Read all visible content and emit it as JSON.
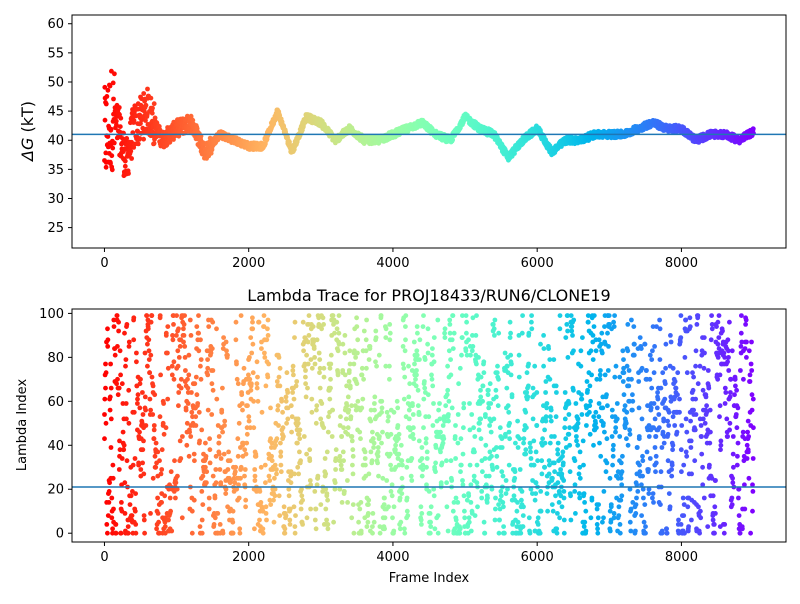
{
  "chart_data": [
    {
      "type": "scatter",
      "title": "",
      "xlabel": "",
      "ylabel": "ΔG (kT)",
      "ylabel_symbol": "ΔG",
      "ylabel_unit": "(kT)",
      "xlim": [
        -450,
        9450
      ],
      "ylim": [
        21.5,
        61.5
      ],
      "xticks": [
        0,
        2000,
        4000,
        6000,
        8000
      ],
      "yticks": [
        25,
        30,
        35,
        40,
        45,
        50,
        55,
        60
      ],
      "hline": 41.0,
      "hline_color": "#1f77b4",
      "colormap": "rainbow (red at early frames → violet at late frames)",
      "x_range": [
        0,
        9000
      ],
      "trend": "early frames scatter widely (24–58), spread narrows over time; later values wander between ~37 and ~46 around the 41 reference line",
      "series": [
        {
          "x": [
            0,
            100,
            200,
            300,
            400,
            600,
            800,
            1000,
            1200,
            1400,
            1600,
            1800,
            2000,
            2200,
            2400,
            2600,
            2800,
            3000,
            3200,
            3400,
            3600,
            3800,
            4000,
            4200,
            4400,
            4600,
            4800,
            5000,
            5200,
            5400,
            5600,
            5800,
            6000,
            6200,
            6400,
            6600,
            6800,
            7000,
            7200,
            7400,
            7600,
            7800,
            8000,
            8200,
            8400,
            8600,
            8800,
            9000
          ],
          "y": [
            40,
            44,
            42,
            36,
            42,
            45,
            40,
            42,
            43,
            38,
            41,
            40,
            39,
            39,
            45,
            38,
            44,
            43,
            40,
            42,
            40,
            40,
            41,
            42,
            43,
            41,
            40,
            44,
            42,
            41,
            37,
            40,
            42,
            38,
            40,
            40,
            41,
            41,
            41,
            42,
            43,
            42,
            42,
            40,
            41,
            41,
            40,
            41.5
          ]
        }
      ]
    },
    {
      "type": "scatter",
      "title": "Lambda Trace for PROJ18433/RUN6/CLONE19",
      "xlabel": "Frame Index",
      "ylabel": "Lambda Index",
      "xlim": [
        -450,
        9450
      ],
      "ylim": [
        -4,
        102
      ],
      "xticks": [
        0,
        2000,
        4000,
        6000,
        8000
      ],
      "yticks": [
        0,
        20,
        40,
        60,
        80,
        100
      ],
      "hline": 21,
      "hline_color": "#1f77b4",
      "colormap": "rainbow (red at early frames → violet at late frames)",
      "x_range": [
        0,
        9000
      ],
      "y_range": [
        0,
        99
      ],
      "trend": "lambda index jumps across the full 0–99 range throughout the run, forming vertical streaks"
    }
  ]
}
